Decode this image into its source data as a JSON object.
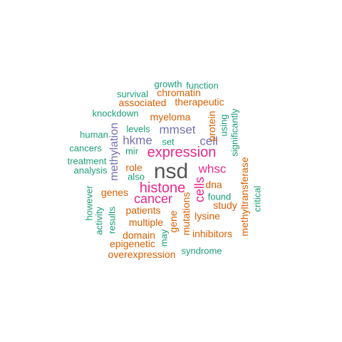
{
  "colors": {
    "green": "#1b9e77",
    "orange": "#d95f02",
    "purple": "#7570b3",
    "pink": "#e7298a",
    "gray": "#555555"
  },
  "words": [
    {
      "text": "nsd",
      "color": "gray",
      "weight": 5
    },
    {
      "text": "expression",
      "color": "pink",
      "weight": 4
    },
    {
      "text": "histone",
      "color": "pink",
      "weight": 4
    },
    {
      "text": "cancer",
      "color": "pink",
      "weight": 4
    },
    {
      "text": "cells",
      "color": "pink",
      "weight": 4
    },
    {
      "text": "whsc",
      "color": "pink",
      "weight": 4
    },
    {
      "text": "mmset",
      "color": "purple",
      "weight": 3
    },
    {
      "text": "cell",
      "color": "purple",
      "weight": 3
    },
    {
      "text": "hkme",
      "color": "purple",
      "weight": 3
    },
    {
      "text": "methylation",
      "color": "purple",
      "weight": 3
    },
    {
      "text": "myeloma",
      "color": "orange",
      "weight": 2
    },
    {
      "text": "role",
      "color": "orange",
      "weight": 2
    },
    {
      "text": "patients",
      "color": "orange",
      "weight": 2
    },
    {
      "text": "genes",
      "color": "orange",
      "weight": 2
    },
    {
      "text": "multiple",
      "color": "orange",
      "weight": 2
    },
    {
      "text": "domain",
      "color": "orange",
      "weight": 2
    },
    {
      "text": "epigenetic",
      "color": "orange",
      "weight": 2
    },
    {
      "text": "overexpression",
      "color": "orange",
      "weight": 2
    },
    {
      "text": "lysine",
      "color": "orange",
      "weight": 2
    },
    {
      "text": "study",
      "color": "orange",
      "weight": 2
    },
    {
      "text": "inhibitors",
      "color": "orange",
      "weight": 2
    },
    {
      "text": "chromatin",
      "color": "orange",
      "weight": 2
    },
    {
      "text": "therapeutic",
      "color": "orange",
      "weight": 2
    },
    {
      "text": "associated",
      "color": "orange",
      "weight": 2
    },
    {
      "text": "protein",
      "color": "orange",
      "weight": 2
    },
    {
      "text": "methyltransferase",
      "color": "orange",
      "weight": 2
    },
    {
      "text": "mutations",
      "color": "orange",
      "weight": 2
    },
    {
      "text": "gene",
      "color": "orange",
      "weight": 2
    },
    {
      "text": "dna",
      "color": "orange",
      "weight": 2
    },
    {
      "text": "growth",
      "color": "green",
      "weight": 1
    },
    {
      "text": "function",
      "color": "green",
      "weight": 1
    },
    {
      "text": "survival",
      "color": "green",
      "weight": 1
    },
    {
      "text": "knockdown",
      "color": "green",
      "weight": 1
    },
    {
      "text": "levels",
      "color": "green",
      "weight": 1
    },
    {
      "text": "human",
      "color": "green",
      "weight": 1
    },
    {
      "text": "cancers",
      "color": "green",
      "weight": 1
    },
    {
      "text": "treatment",
      "color": "green",
      "weight": 1
    },
    {
      "text": "analysis",
      "color": "green",
      "weight": 1
    },
    {
      "text": "mir",
      "color": "green",
      "weight": 1
    },
    {
      "text": "also",
      "color": "green",
      "weight": 1
    },
    {
      "text": "set",
      "color": "green",
      "weight": 1
    },
    {
      "text": "using",
      "color": "green",
      "weight": 1
    },
    {
      "text": "significantly",
      "color": "green",
      "weight": 1
    },
    {
      "text": "found",
      "color": "green",
      "weight": 1
    },
    {
      "text": "critical",
      "color": "green",
      "weight": 1
    },
    {
      "text": "however",
      "color": "green",
      "weight": 1
    },
    {
      "text": "activity",
      "color": "green",
      "weight": 1
    },
    {
      "text": "results",
      "color": "green",
      "weight": 1
    },
    {
      "text": "may",
      "color": "green",
      "weight": 1
    },
    {
      "text": "syndrome",
      "color": "green",
      "weight": 1
    }
  ]
}
